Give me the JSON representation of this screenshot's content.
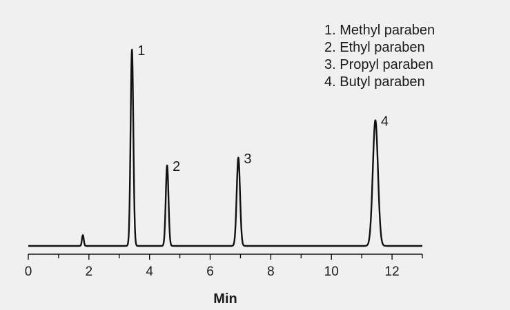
{
  "chart_data": {
    "type": "line",
    "xlabel": "Min",
    "ylabel": "",
    "xlim": [
      0,
      13
    ],
    "ylim": [
      0,
      100
    ],
    "x_ticks": [
      0,
      2,
      4,
      6,
      8,
      10,
      12
    ],
    "x_tick_labels": [
      "0",
      "2",
      "4",
      "6",
      "8",
      "10",
      "12"
    ],
    "grid": false,
    "legend_position": "top-right",
    "legend": [
      "1. Methyl paraben",
      "2. Ethyl paraben",
      "3. Propyl paraben",
      "4. Butyl paraben"
    ],
    "baseline_disturbance": {
      "x": 1.8,
      "y": 5.5,
      "width": 0.03
    },
    "peaks": [
      {
        "label": "1",
        "retention_time": 3.42,
        "height": 100,
        "width": 0.045
      },
      {
        "label": "2",
        "retention_time": 4.58,
        "height": 41,
        "width": 0.045
      },
      {
        "label": "3",
        "retention_time": 6.93,
        "height": 45,
        "width": 0.055
      },
      {
        "label": "4",
        "retention_time": 11.45,
        "height": 64,
        "width": 0.085
      }
    ]
  }
}
